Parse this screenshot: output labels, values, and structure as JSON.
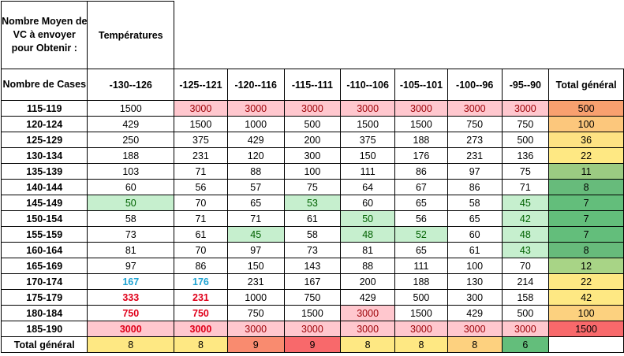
{
  "corner_label": "Nombre Moyen de VC à envoyer pour Obtenir :",
  "temperatures_label": "Températures",
  "row_header_label": "Nombre de Cases",
  "columns": [
    "-130--126",
    "-125--121",
    "-120--116",
    "-115--111",
    "-110--106",
    "-105--101",
    "-100--96",
    "-95--90",
    "Total général"
  ],
  "rows": [
    {
      "label": "115-119",
      "cells": [
        "1500",
        "3000",
        "3000",
        "3000",
        "3000",
        "3000",
        "3000",
        "3000",
        "500"
      ]
    },
    {
      "label": "120-124",
      "cells": [
        "429",
        "1500",
        "1000",
        "500",
        "1500",
        "1500",
        "750",
        "750",
        "100"
      ]
    },
    {
      "label": "125-129",
      "cells": [
        "250",
        "375",
        "429",
        "200",
        "375",
        "188",
        "273",
        "500",
        "36"
      ]
    },
    {
      "label": "130-134",
      "cells": [
        "188",
        "231",
        "120",
        "300",
        "150",
        "176",
        "231",
        "136",
        "22"
      ]
    },
    {
      "label": "135-139",
      "cells": [
        "103",
        "71",
        "88",
        "100",
        "111",
        "86",
        "97",
        "75",
        "11"
      ]
    },
    {
      "label": "140-144",
      "cells": [
        "60",
        "56",
        "57",
        "75",
        "64",
        "67",
        "86",
        "71",
        "8"
      ]
    },
    {
      "label": "145-149",
      "cells": [
        "50",
        "70",
        "65",
        "53",
        "60",
        "65",
        "58",
        "45",
        "7"
      ]
    },
    {
      "label": "150-154",
      "cells": [
        "58",
        "71",
        "71",
        "61",
        "50",
        "56",
        "65",
        "42",
        "7"
      ]
    },
    {
      "label": "155-159",
      "cells": [
        "73",
        "61",
        "45",
        "58",
        "48",
        "52",
        "60",
        "48",
        "7"
      ]
    },
    {
      "label": "160-164",
      "cells": [
        "81",
        "70",
        "97",
        "73",
        "81",
        "65",
        "61",
        "43",
        "8"
      ]
    },
    {
      "label": "165-169",
      "cells": [
        "97",
        "86",
        "150",
        "143",
        "88",
        "111",
        "100",
        "70",
        "12"
      ]
    },
    {
      "label": "170-174",
      "cells": [
        "167",
        "176",
        "231",
        "167",
        "200",
        "188",
        "130",
        "214",
        "22"
      ]
    },
    {
      "label": "175-179",
      "cells": [
        "333",
        "231",
        "1000",
        "750",
        "429",
        "500",
        "300",
        "158",
        "42"
      ]
    },
    {
      "label": "180-184",
      "cells": [
        "750",
        "750",
        "750",
        "1500",
        "3000",
        "1500",
        "429",
        "500",
        "100"
      ]
    },
    {
      "label": "185-190",
      "cells": [
        "3000",
        "3000",
        "3000",
        "3000",
        "3000",
        "3000",
        "3000",
        "3000",
        "1500"
      ]
    }
  ],
  "total_row": {
    "label": "Total général",
    "cells": [
      "8",
      "8",
      "9",
      "9",
      "8",
      "8",
      "8",
      "6",
      ""
    ]
  },
  "colors": {
    "pink_fill": "#ffc7ce",
    "pink_text": "#9c0006",
    "green_fill": "#c6efce",
    "green_text": "#006100",
    "cyan_text": "#1fa3d2",
    "red_text": "#e0001a"
  }
}
